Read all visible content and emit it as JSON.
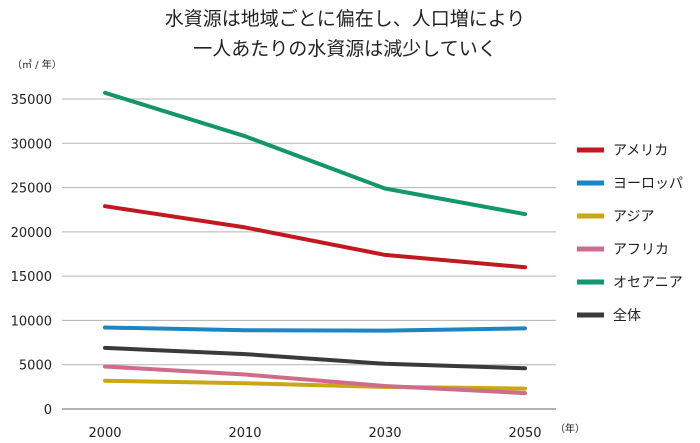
{
  "chart_data": {
    "type": "line",
    "title_lines": [
      "水資源は地域ごとに偏在し、人口増により",
      "一人あたりの水資源は減少していく"
    ],
    "ylabel_unit": "（㎥ / 年）",
    "xlabel_unit": "（年）",
    "ylim": [
      0,
      35000
    ],
    "yticks": [
      0,
      5000,
      10000,
      15000,
      20000,
      25000,
      30000,
      35000
    ],
    "ytick_labels": [
      "0",
      "5000",
      "10000",
      "15000",
      "20000",
      "25000",
      "30000",
      "35000"
    ],
    "xlim": [
      2000,
      2050
    ],
    "x": [
      2000,
      2010,
      2030,
      2050
    ],
    "xtick_labels": [
      "2000",
      "2010",
      "2030",
      "2050"
    ],
    "grid": true,
    "legend_position": "right",
    "series": [
      {
        "name": "アメリカ",
        "color": "#c0191f",
        "values": [
          22900,
          20500,
          17400,
          16000
        ]
      },
      {
        "name": "ヨーロッパ",
        "color": "#1a86c3",
        "values": [
          9200,
          8900,
          8850,
          9100
        ]
      },
      {
        "name": "アジア",
        "color": "#c8a814",
        "values": [
          3200,
          2900,
          2500,
          2300
        ]
      },
      {
        "name": "アフリカ",
        "color": "#d16b8c",
        "values": [
          4800,
          3900,
          2600,
          1800
        ]
      },
      {
        "name": "オセアニア",
        "color": "#13966a",
        "values": [
          35700,
          30800,
          24900,
          22000
        ]
      },
      {
        "name": "全体",
        "color": "#3a3a3a",
        "values": [
          6900,
          6200,
          5100,
          4600
        ]
      }
    ]
  }
}
